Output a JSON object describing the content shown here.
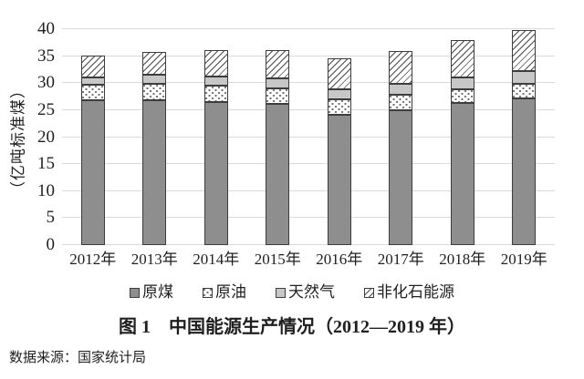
{
  "figure_caption": "图 1　中国能源生产情况（2012—2019 年）",
  "data_source": "数据来源：国家统计局",
  "colors": {
    "coal_fill": "#8e8e8e",
    "gas_fill": "#c7c7c7",
    "segment_border": "#3d3d3d",
    "dot_ink": "#6f6f6f",
    "hatch_ink": "#4c4c4c",
    "gridline": "#dadada",
    "text": "#1f1f1f",
    "background": "#ffffff"
  },
  "chart_data": {
    "type": "bar",
    "stacked": true,
    "title": "图 1　中国能源生产情况（2012—2019 年）",
    "xlabel": "",
    "ylabel": "（亿吨标准煤）",
    "ylim": [
      0,
      40
    ],
    "ytick_step": 5,
    "ytick_labels": [
      "0",
      "5",
      "10",
      "15",
      "20",
      "25",
      "30",
      "35",
      "40"
    ],
    "grid": true,
    "legend_position": "bottom",
    "categories": [
      "2012年",
      "2013年",
      "2014年",
      "2015年",
      "2016年",
      "2017年",
      "2018年",
      "2019年"
    ],
    "series": [
      {
        "name": "原煤",
        "pattern": "solid-dark",
        "values": [
          26.8,
          26.9,
          26.5,
          26.1,
          24.1,
          24.9,
          26.3,
          27.2
        ]
      },
      {
        "name": "原油",
        "pattern": "dots",
        "values": [
          2.9,
          3.0,
          3.0,
          3.0,
          2.9,
          3.0,
          2.6,
          2.7
        ]
      },
      {
        "name": "天然气",
        "pattern": "solid-light",
        "values": [
          1.3,
          1.6,
          1.8,
          1.8,
          1.8,
          1.9,
          2.2,
          2.3
        ]
      },
      {
        "name": "非化石能源",
        "pattern": "hatch",
        "values": [
          4.1,
          4.3,
          4.9,
          5.2,
          5.8,
          6.1,
          6.8,
          7.6
        ]
      }
    ],
    "totals": [
      35.1,
      35.8,
      36.2,
      36.1,
      34.6,
      35.9,
      37.9,
      39.8
    ]
  }
}
